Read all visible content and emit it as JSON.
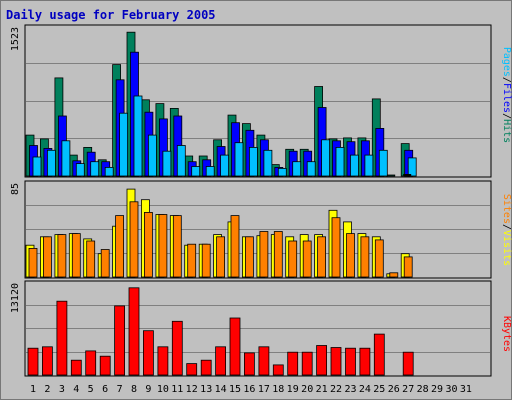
{
  "title": "Daily usage for February 2005",
  "colors": {
    "hits": "#00805C",
    "files": "#0000FF",
    "pages": "#00C0FF",
    "visits": "#FFFF00",
    "sites": "#FF8000",
    "kbytes": "#FF0000",
    "weekend": "#00805C",
    "weekday": "#000000"
  },
  "right_labels": {
    "top": [
      {
        "text": "Pages",
        "color": "#00C0FF"
      },
      {
        "text": "/",
        "color": "#000000"
      },
      {
        "text": "Files",
        "color": "#0000FF"
      },
      {
        "text": "/",
        "color": "#000000"
      },
      {
        "text": "Hits",
        "color": "#00805C"
      }
    ],
    "middle": [
      {
        "text": "Sites",
        "color": "#FF8000"
      },
      {
        "text": "/",
        "color": "#000000"
      },
      {
        "text": "Visits",
        "color": "#FFFF00"
      }
    ],
    "bottom": [
      {
        "text": "KBytes",
        "color": "#FF0000"
      }
    ]
  },
  "chart_data": {
    "type": "bar",
    "title": "Daily usage for February 2005",
    "categories": [
      "1",
      "2",
      "3",
      "4",
      "5",
      "6",
      "7",
      "8",
      "9",
      "10",
      "11",
      "12",
      "13",
      "14",
      "15",
      "16",
      "17",
      "18",
      "19",
      "20",
      "21",
      "22",
      "23",
      "24",
      "25",
      "26",
      "27",
      "28",
      "29",
      "30",
      "31"
    ],
    "weekend_days": [
      5,
      6,
      12,
      13,
      19,
      20,
      26,
      27
    ],
    "panels": [
      {
        "name": "top",
        "ymax": 1523,
        "ytick_label": "1523",
        "series": [
          {
            "name": "Hits",
            "values": [
              430,
              390,
              1030,
              220,
              300,
              170,
              1170,
              1510,
              800,
              760,
              710,
              210,
              210,
              380,
              640,
              550,
              430,
              120,
              280,
              280,
              940,
              390,
              400,
              400,
              810,
              10,
              340,
              0,
              0,
              0,
              0
            ]
          },
          {
            "name": "Files",
            "values": [
              320,
              290,
              630,
              160,
              250,
              150,
              1010,
              1300,
              670,
              600,
              630,
              150,
              170,
              310,
              560,
              480,
              380,
              90,
              260,
              260,
              720,
              370,
              360,
              370,
              500,
              0,
              270,
              0,
              0,
              0,
              0
            ]
          },
          {
            "name": "Pages",
            "values": [
              200,
              270,
              370,
              130,
              150,
              90,
              660,
              840,
              430,
              260,
              320,
              100,
              100,
              220,
              350,
              300,
              270,
              80,
              150,
              150,
              380,
              300,
              220,
              220,
              270,
              0,
              190,
              0,
              0,
              0,
              0
            ]
          }
        ]
      },
      {
        "name": "middle",
        "ymax": 85,
        "ytick_label": "85",
        "series": [
          {
            "name": "Visits",
            "values": [
              30,
              38,
              40,
              41,
              36,
              22,
              48,
              83,
              73,
              59,
              58,
              30,
              31,
              40,
              52,
              38,
              39,
              40,
              38,
              40,
              40,
              63,
              52,
              41,
              38,
              3,
              22,
              0,
              0,
              0,
              0
            ]
          },
          {
            "name": "Sites",
            "values": [
              27,
              38,
              40,
              41,
              34,
              26,
              58,
              71,
              61,
              59,
              58,
              31,
              31,
              38,
              58,
              38,
              43,
              43,
              34,
              34,
              38,
              56,
              41,
              38,
              35,
              4,
              19,
              0,
              0,
              0,
              0
            ]
          }
        ]
      },
      {
        "name": "bottom",
        "ymax": 13120,
        "ytick_label": "13120",
        "series": [
          {
            "name": "KBytes",
            "values": [
              4000,
              4200,
              11000,
              2200,
              3600,
              2800,
              10300,
              13000,
              6600,
              4200,
              8000,
              1700,
              2200,
              4200,
              8500,
              3300,
              4200,
              1500,
              3400,
              3400,
              4400,
              4100,
              4000,
              4000,
              6100,
              0,
              3400,
              0,
              0,
              0,
              0
            ]
          }
        ]
      }
    ]
  }
}
